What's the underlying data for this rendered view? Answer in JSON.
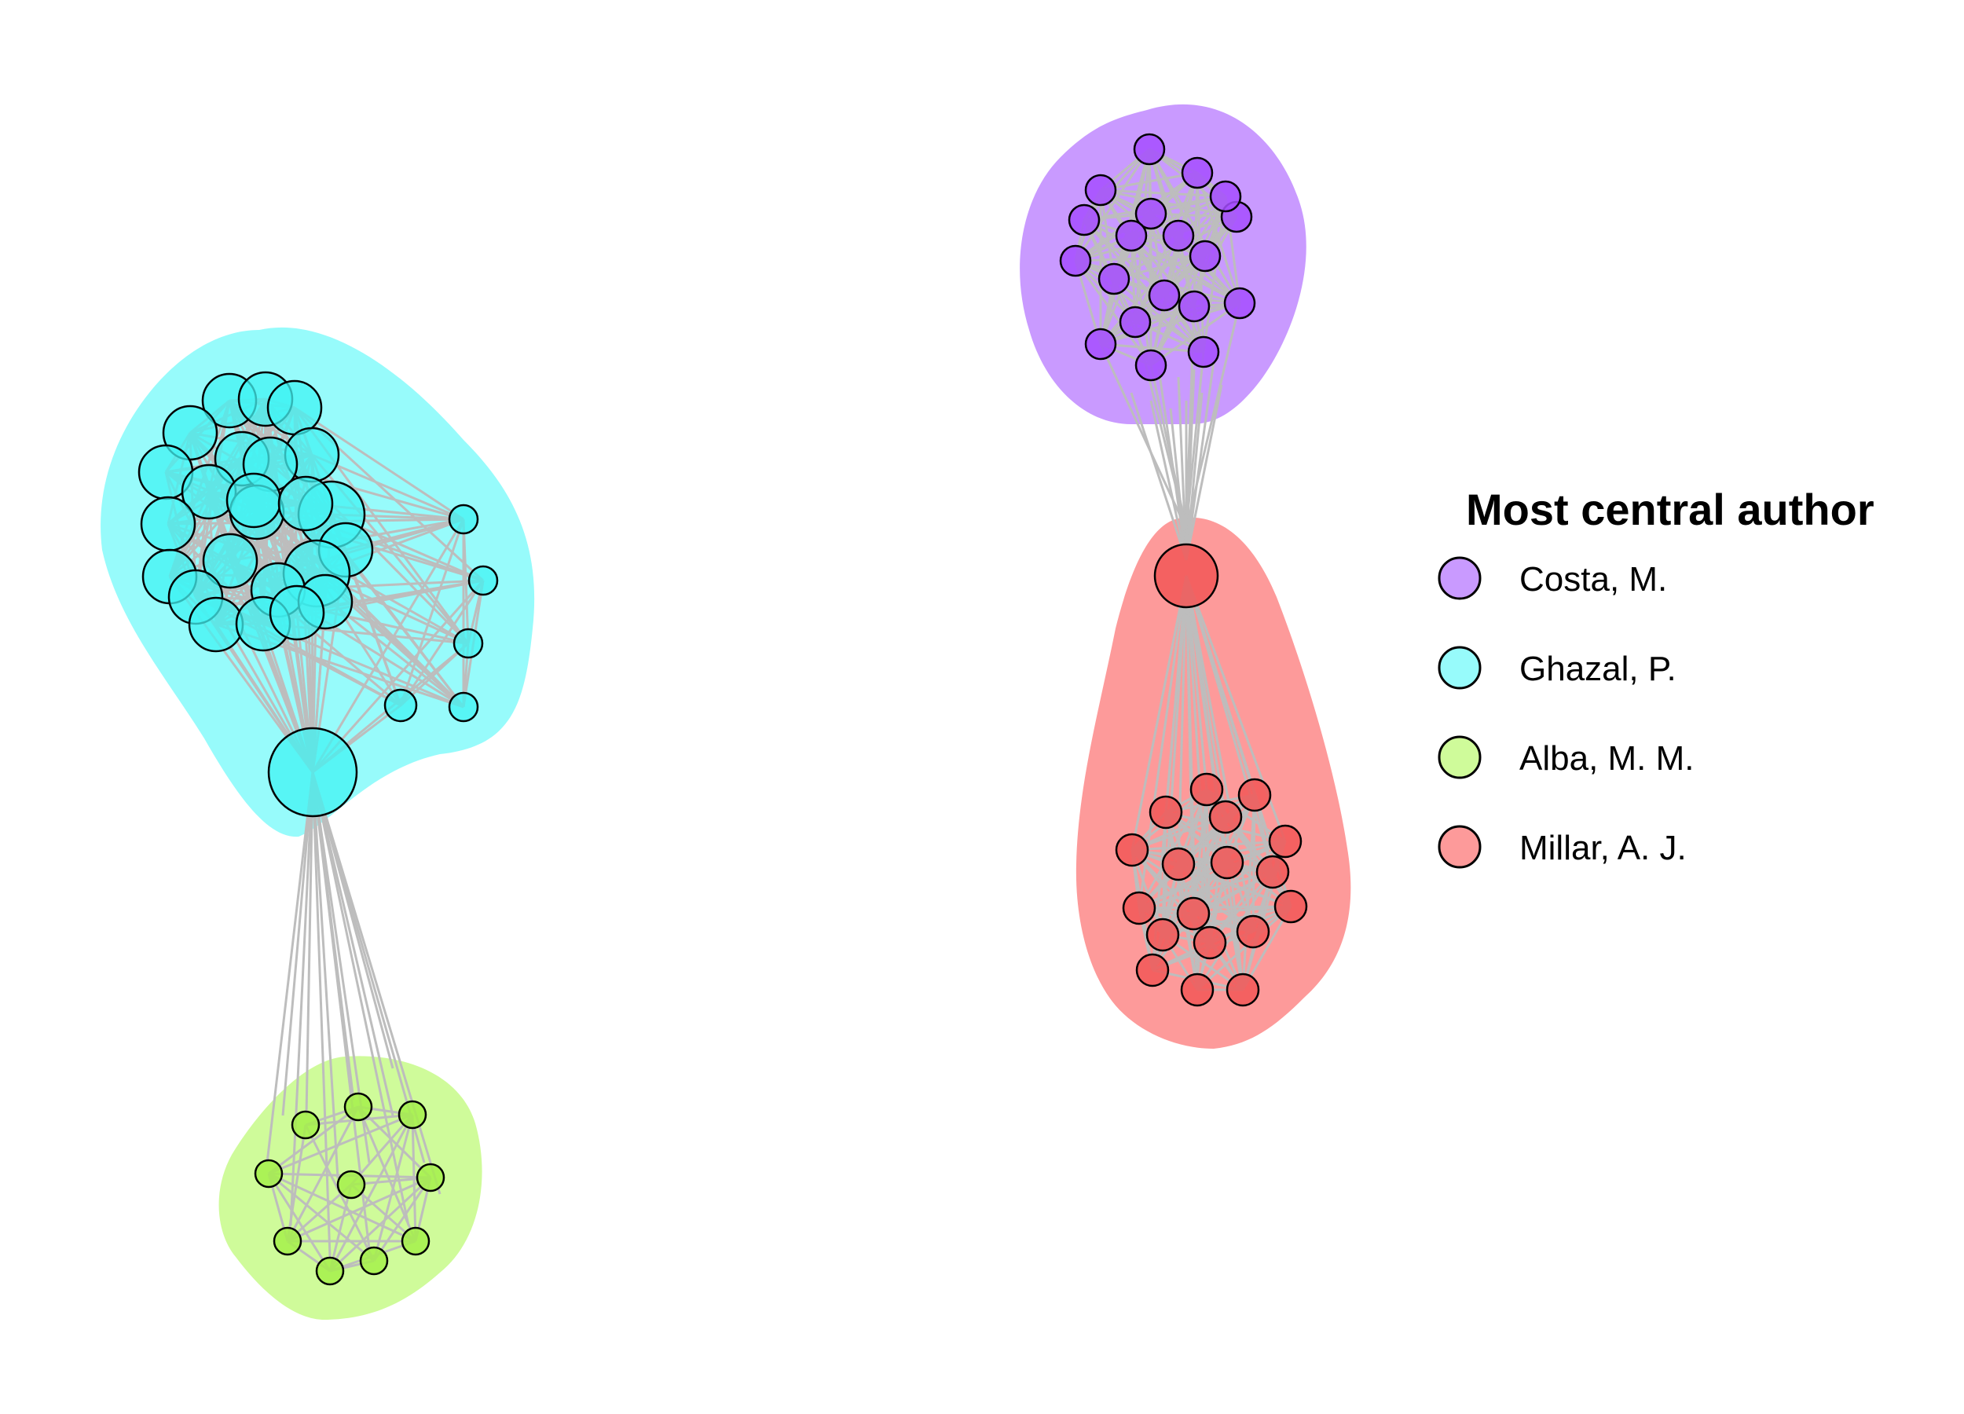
{
  "legend": {
    "title": "Most central author",
    "items": [
      {
        "key": "costa",
        "label": "Costa, M.",
        "color": "#c99aff"
      },
      {
        "key": "ghazal",
        "label": "Ghazal, P.",
        "color": "#97fbfb"
      },
      {
        "key": "alba",
        "label": "Alba, M. M.",
        "color": "#cffb9a"
      },
      {
        "key": "millar",
        "label": "Millar, A. J.",
        "color": "#fd9a9a"
      }
    ]
  },
  "communities": [
    {
      "key": "costa",
      "hull_color": "#c99aff",
      "node_color": "#a64dff",
      "member_count": 19
    },
    {
      "key": "ghazal",
      "hull_color": "#97fbfb",
      "node_color": "#41f3f3",
      "member_count": 30
    },
    {
      "key": "alba",
      "hull_color": "#cffb9a",
      "node_color": "#a5f04a",
      "member_count": 12
    },
    {
      "key": "millar",
      "hull_color": "#fd9a9a",
      "node_color": "#f25757",
      "member_count": 19
    }
  ],
  "edge_color": "#bdbdbd",
  "node_border_color": "#000000"
}
